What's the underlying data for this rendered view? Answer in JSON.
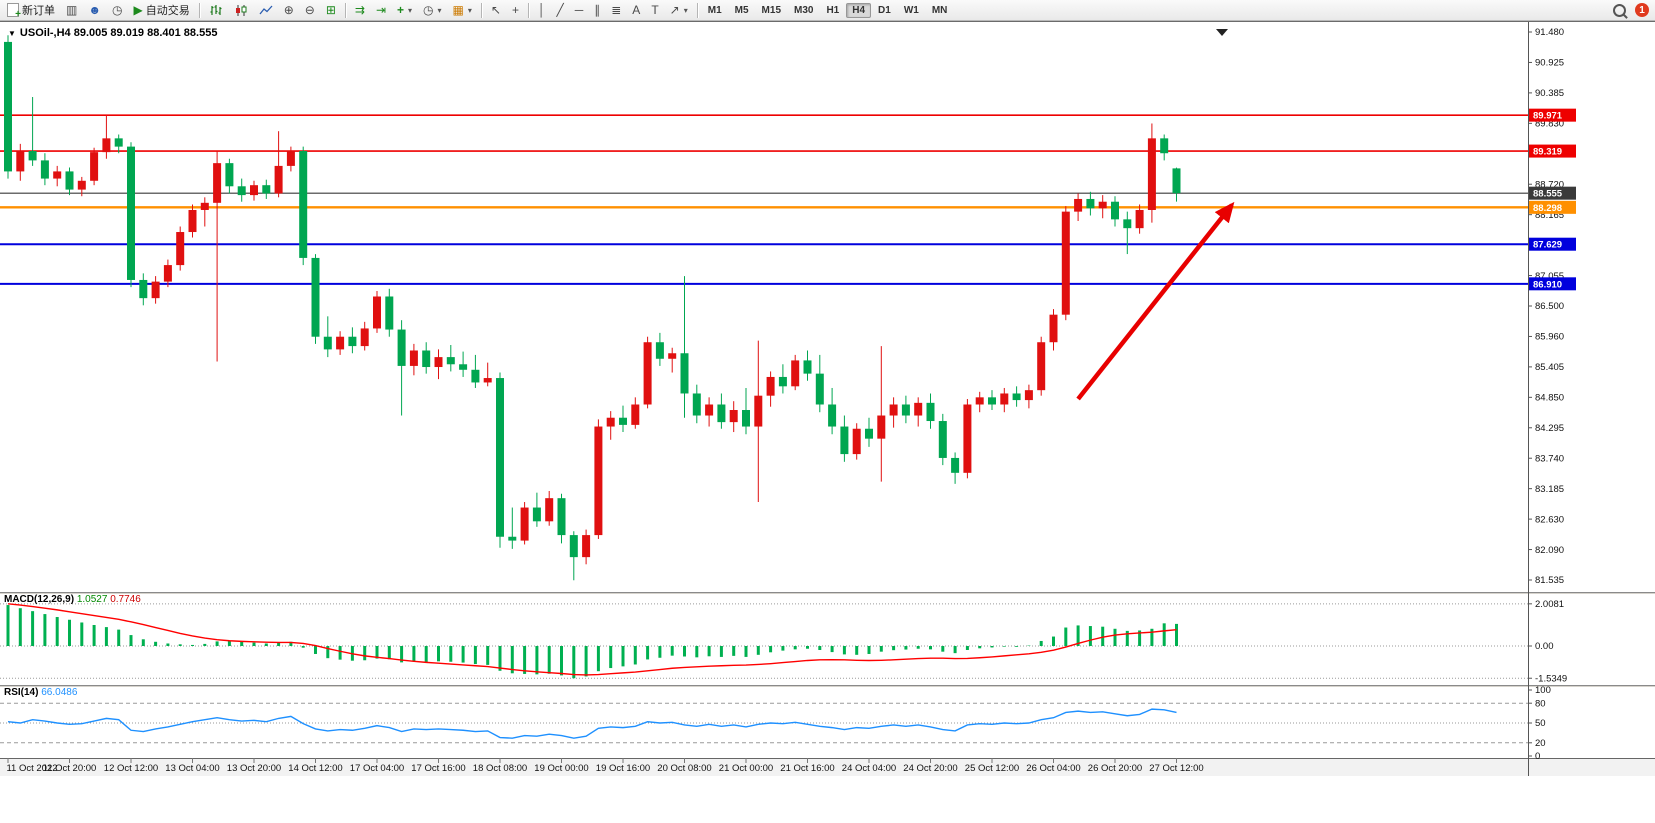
{
  "toolbar": {
    "new_order": "新订单",
    "auto_trading": "自动交易",
    "timeframes": [
      "M1",
      "M5",
      "M15",
      "M30",
      "H1",
      "H4",
      "D1",
      "W1",
      "MN"
    ],
    "active_timeframe": "H4",
    "notification_badge": "1"
  },
  "chart": {
    "ohlc_title": "USOil-,H4  89.005 89.019 88.401 88.555"
  },
  "indicators": {
    "macd": {
      "label": "MACD(12,26,9)",
      "value": "1.0527",
      "signal_value": "0.7746",
      "axis_labels": [
        "2.0081",
        "0.00",
        "-1.5349"
      ],
      "axis_values": [
        2.0081,
        0,
        -1.5349
      ]
    },
    "rsi": {
      "label": "RSI(14)",
      "value": "66.0486",
      "axis_labels": [
        "100",
        "80",
        "50",
        "20",
        "0"
      ],
      "axis_values": [
        100,
        80,
        50,
        20,
        0
      ],
      "levels": [
        80,
        50,
        20
      ]
    }
  },
  "chart_data": {
    "type": "candlestick",
    "symbol": "USOil-",
    "timeframe": "H4",
    "title": "USOil-,H4 89.005 89.019 88.401 88.555",
    "ylim": [
      81.535,
      91.48
    ],
    "y_axis_labels": [
      "91.480",
      "90.925",
      "90.385",
      "89.830",
      "89.275",
      "88.720",
      "88.165",
      "87.610",
      "87.055",
      "86.500",
      "85.960",
      "85.405",
      "84.850",
      "84.295",
      "83.740",
      "83.185",
      "82.630",
      "82.090",
      "81.535"
    ],
    "x_labels": [
      "11 Oct 2022",
      "11 Oct 20:00",
      "12 Oct 12:00",
      "13 Oct 04:00",
      "13 Oct 20:00",
      "14 Oct 12:00",
      "17 Oct 04:00",
      "17 Oct 16:00",
      "18 Oct 08:00",
      "19 Oct 00:00",
      "19 Oct 16:00",
      "20 Oct 08:00",
      "21 Oct 00:00",
      "21 Oct 16:00",
      "24 Oct 04:00",
      "24 Oct 20:00",
      "25 Oct 12:00",
      "26 Oct 04:00",
      "26 Oct 20:00",
      "27 Oct 12:00"
    ],
    "label_every_n_bars": 5,
    "ohlc": [
      [
        91.3,
        91.42,
        88.82,
        88.95
      ],
      [
        88.95,
        89.45,
        88.78,
        89.32
      ],
      [
        89.32,
        90.3,
        89.05,
        89.15
      ],
      [
        89.15,
        89.28,
        88.7,
        88.82
      ],
      [
        88.82,
        89.05,
        88.68,
        88.95
      ],
      [
        88.95,
        89.02,
        88.52,
        88.62
      ],
      [
        88.62,
        88.85,
        88.5,
        88.78
      ],
      [
        88.78,
        89.38,
        88.7,
        89.3
      ],
      [
        89.3,
        89.97,
        89.18,
        89.55
      ],
      [
        89.55,
        89.62,
        89.28,
        89.4
      ],
      [
        89.4,
        89.48,
        86.85,
        86.98
      ],
      [
        86.98,
        87.1,
        86.52,
        86.65
      ],
      [
        86.65,
        87.05,
        86.55,
        86.95
      ],
      [
        86.95,
        87.35,
        86.85,
        87.25
      ],
      [
        87.25,
        87.95,
        87.15,
        87.85
      ],
      [
        87.85,
        88.35,
        87.75,
        88.25
      ],
      [
        88.25,
        88.48,
        87.95,
        88.38
      ],
      [
        88.38,
        89.32,
        85.5,
        89.1
      ],
      [
        89.1,
        89.18,
        88.55,
        88.68
      ],
      [
        88.68,
        88.82,
        88.4,
        88.52
      ],
      [
        88.52,
        88.78,
        88.42,
        88.7
      ],
      [
        88.7,
        88.8,
        88.45,
        88.55
      ],
      [
        88.55,
        89.68,
        88.48,
        89.05
      ],
      [
        89.05,
        89.4,
        88.95,
        89.32
      ],
      [
        89.32,
        89.4,
        87.25,
        87.38
      ],
      [
        87.38,
        87.45,
        85.82,
        85.95
      ],
      [
        85.95,
        86.32,
        85.58,
        85.72
      ],
      [
        85.72,
        86.05,
        85.62,
        85.95
      ],
      [
        85.95,
        86.12,
        85.65,
        85.78
      ],
      [
        85.78,
        86.22,
        85.7,
        86.1
      ],
      [
        86.1,
        86.78,
        86.02,
        86.68
      ],
      [
        86.68,
        86.82,
        85.95,
        86.08
      ],
      [
        86.08,
        86.25,
        84.52,
        85.42
      ],
      [
        85.42,
        85.82,
        85.25,
        85.7
      ],
      [
        85.7,
        85.85,
        85.28,
        85.4
      ],
      [
        85.4,
        85.72,
        85.18,
        85.58
      ],
      [
        85.58,
        85.8,
        85.32,
        85.45
      ],
      [
        85.45,
        85.68,
        85.22,
        85.35
      ],
      [
        85.35,
        85.62,
        85.02,
        85.12
      ],
      [
        85.12,
        85.48,
        85.05,
        85.2
      ],
      [
        85.2,
        85.3,
        82.12,
        82.32
      ],
      [
        82.32,
        82.85,
        82.1,
        82.25
      ],
      [
        82.25,
        82.95,
        82.18,
        82.85
      ],
      [
        82.85,
        83.12,
        82.5,
        82.6
      ],
      [
        82.6,
        83.15,
        82.52,
        83.02
      ],
      [
        83.02,
        83.1,
        82.2,
        82.35
      ],
      [
        82.35,
        82.42,
        81.53,
        81.95
      ],
      [
        81.95,
        82.45,
        81.82,
        82.35
      ],
      [
        82.35,
        84.45,
        82.28,
        84.32
      ],
      [
        84.32,
        84.6,
        84.08,
        84.48
      ],
      [
        84.48,
        84.7,
        84.22,
        84.35
      ],
      [
        84.35,
        84.85,
        84.28,
        84.72
      ],
      [
        84.72,
        85.95,
        84.65,
        85.85
      ],
      [
        85.85,
        86.02,
        85.42,
        85.55
      ],
      [
        85.55,
        85.75,
        85.3,
        85.65
      ],
      [
        85.65,
        87.05,
        84.48,
        84.92
      ],
      [
        84.92,
        85.08,
        84.38,
        84.52
      ],
      [
        84.52,
        84.85,
        84.32,
        84.72
      ],
      [
        84.72,
        84.92,
        84.28,
        84.4
      ],
      [
        84.4,
        84.78,
        84.22,
        84.62
      ],
      [
        84.62,
        85.02,
        84.18,
        84.32
      ],
      [
        84.32,
        85.88,
        82.95,
        84.88
      ],
      [
        84.88,
        85.32,
        84.68,
        85.22
      ],
      [
        85.22,
        85.45,
        84.92,
        85.05
      ],
      [
        85.05,
        85.62,
        84.98,
        85.52
      ],
      [
        85.52,
        85.7,
        85.15,
        85.28
      ],
      [
        85.28,
        85.62,
        84.58,
        84.72
      ],
      [
        84.72,
        85.02,
        84.18,
        84.32
      ],
      [
        84.32,
        84.52,
        83.68,
        83.82
      ],
      [
        83.82,
        84.38,
        83.72,
        84.28
      ],
      [
        84.28,
        84.48,
        83.95,
        84.1
      ],
      [
        84.1,
        85.78,
        83.32,
        84.52
      ],
      [
        84.52,
        84.85,
        84.3,
        84.72
      ],
      [
        84.72,
        84.88,
        84.38,
        84.52
      ],
      [
        84.52,
        84.85,
        84.32,
        84.75
      ],
      [
        84.75,
        84.92,
        84.28,
        84.42
      ],
      [
        84.42,
        84.55,
        83.62,
        83.75
      ],
      [
        83.75,
        83.85,
        83.28,
        83.48
      ],
      [
        83.48,
        84.82,
        83.38,
        84.72
      ],
      [
        84.72,
        84.95,
        84.58,
        84.85
      ],
      [
        84.85,
        84.98,
        84.62,
        84.72
      ],
      [
        84.72,
        85.02,
        84.58,
        84.92
      ],
      [
        84.92,
        85.05,
        84.68,
        84.8
      ],
      [
        84.8,
        85.08,
        84.65,
        84.98
      ],
      [
        84.98,
        85.95,
        84.88,
        85.85
      ],
      [
        85.85,
        86.45,
        85.7,
        86.35
      ],
      [
        86.35,
        88.32,
        86.25,
        88.22
      ],
      [
        88.22,
        88.55,
        88.05,
        88.45
      ],
      [
        88.45,
        88.58,
        88.15,
        88.28
      ],
      [
        88.28,
        88.52,
        88.1,
        88.4
      ],
      [
        88.4,
        88.5,
        87.95,
        88.08
      ],
      [
        88.08,
        88.22,
        87.45,
        87.92
      ],
      [
        87.92,
        88.35,
        87.82,
        88.25
      ],
      [
        88.25,
        89.82,
        88.02,
        89.55
      ],
      [
        89.55,
        89.62,
        89.15,
        89.28
      ],
      [
        89.005,
        89.019,
        88.401,
        88.555
      ]
    ],
    "horizontal_lines": [
      {
        "label": "89.971",
        "price": 89.971,
        "color": "#ee0000",
        "width": 1.6
      },
      {
        "label": "89.319",
        "price": 89.319,
        "color": "#ee0000",
        "width": 1.6
      },
      {
        "label": "88.555",
        "price": 88.555,
        "color": "#3a3a3a",
        "width": 1.1
      },
      {
        "label": "88.298",
        "price": 88.298,
        "color": "#ff9000",
        "width": 2.4
      },
      {
        "label": "87.629",
        "price": 87.629,
        "color": "#0000dd",
        "width": 2.0
      },
      {
        "label": "86.910",
        "price": 86.91,
        "color": "#0000dd",
        "width": 2.0
      }
    ],
    "annotations": {
      "arrow": {
        "from": {
          "bar": 87,
          "price": 84.82
        },
        "to": {
          "bar": 99.5,
          "price": 88.34
        },
        "color": "#e80000"
      }
    },
    "macd_histogram": [
      1.95,
      1.8,
      1.66,
      1.52,
      1.38,
      1.25,
      1.12,
      1.0,
      0.9,
      0.78,
      0.52,
      0.32,
      0.2,
      0.12,
      0.08,
      0.05,
      0.1,
      0.22,
      0.26,
      0.2,
      0.16,
      0.12,
      0.16,
      0.2,
      -0.08,
      -0.38,
      -0.58,
      -0.65,
      -0.7,
      -0.68,
      -0.6,
      -0.63,
      -0.78,
      -0.74,
      -0.76,
      -0.73,
      -0.75,
      -0.79,
      -0.86,
      -0.9,
      -1.18,
      -1.3,
      -1.33,
      -1.35,
      -1.32,
      -1.4,
      -1.5349,
      -1.45,
      -1.2,
      -1.05,
      -0.97,
      -0.88,
      -0.64,
      -0.56,
      -0.46,
      -0.5,
      -0.54,
      -0.49,
      -0.52,
      -0.47,
      -0.52,
      -0.42,
      -0.3,
      -0.22,
      -0.16,
      -0.13,
      -0.19,
      -0.29,
      -0.4,
      -0.42,
      -0.38,
      -0.27,
      -0.2,
      -0.17,
      -0.13,
      -0.16,
      -0.27,
      -0.34,
      -0.19,
      -0.11,
      -0.07,
      -0.03,
      -0.04,
      0.02,
      0.24,
      0.45,
      0.88,
      0.98,
      0.95,
      0.92,
      0.82,
      0.72,
      0.74,
      0.82,
      1.08,
      1.0527
    ],
    "macd_signal": [
      2.0081,
      1.95,
      1.88,
      1.8,
      1.72,
      1.63,
      1.54,
      1.45,
      1.36,
      1.27,
      1.15,
      1.02,
      0.88,
      0.74,
      0.6,
      0.48,
      0.38,
      0.3,
      0.25,
      0.22,
      0.2,
      0.18,
      0.17,
      0.17,
      0.12,
      0.02,
      -0.12,
      -0.25,
      -0.37,
      -0.47,
      -0.54,
      -0.6,
      -0.67,
      -0.73,
      -0.78,
      -0.82,
      -0.86,
      -0.9,
      -0.94,
      -0.98,
      -1.05,
      -1.12,
      -1.18,
      -1.23,
      -1.27,
      -1.31,
      -1.36,
      -1.38,
      -1.36,
      -1.32,
      -1.28,
      -1.24,
      -1.18,
      -1.12,
      -1.06,
      -1.02,
      -0.99,
      -0.96,
      -0.94,
      -0.92,
      -0.91,
      -0.88,
      -0.84,
      -0.79,
      -0.74,
      -0.69,
      -0.66,
      -0.65,
      -0.66,
      -0.68,
      -0.69,
      -0.68,
      -0.66,
      -0.63,
      -0.6,
      -0.58,
      -0.58,
      -0.6,
      -0.59,
      -0.56,
      -0.52,
      -0.47,
      -0.42,
      -0.37,
      -0.3,
      -0.2,
      -0.05,
      0.12,
      0.28,
      0.42,
      0.52,
      0.58,
      0.62,
      0.66,
      0.72,
      0.7746
    ],
    "rsi": [
      52,
      50,
      55,
      53,
      50,
      48,
      49,
      53,
      57,
      55,
      39,
      37,
      41,
      44,
      48,
      52,
      55,
      58,
      55,
      53,
      54,
      52,
      57,
      60,
      49,
      41,
      38,
      40,
      39,
      42,
      46,
      43,
      37,
      41,
      40,
      41,
      40,
      39,
      37,
      38,
      28,
      27,
      31,
      30,
      33,
      31,
      27,
      30,
      42,
      44,
      43,
      45,
      52,
      50,
      51,
      47,
      45,
      48,
      45,
      47,
      44,
      48,
      50,
      49,
      51,
      48,
      45,
      43,
      40,
      43,
      42,
      45,
      47,
      45,
      47,
      44,
      40,
      38,
      47,
      49,
      48,
      50,
      49,
      50,
      55,
      58,
      66,
      68,
      66,
      67,
      64,
      61,
      63,
      71,
      70,
      66.05
    ],
    "colors": {
      "up": "#e01010",
      "down": "#00a651",
      "macd_hist": "#00b050",
      "macd_signal": "#ff0000",
      "rsi_line": "#1e90ff",
      "arrow": "#e80000",
      "axis_text": "#111111"
    }
  }
}
